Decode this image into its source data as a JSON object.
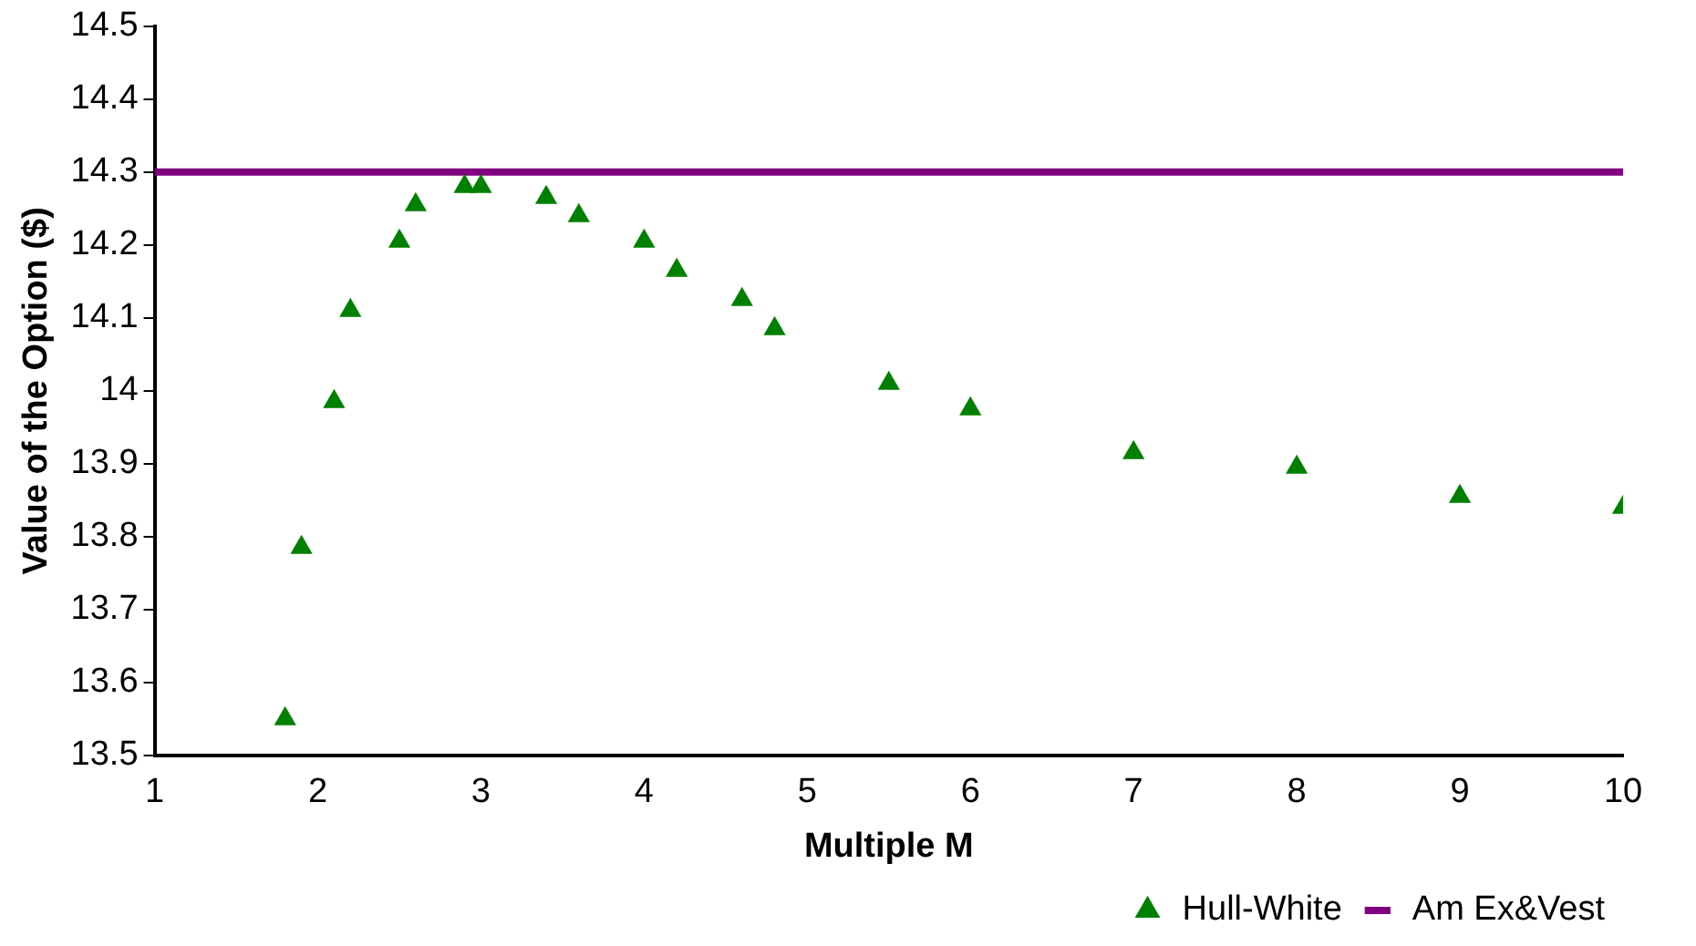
{
  "chart_data": {
    "type": "scatter",
    "xlabel": "Multiple M",
    "ylabel": "Value of the Option ($)",
    "xlim": [
      1,
      10
    ],
    "xticks": [
      1,
      2,
      3,
      4,
      5,
      6,
      7,
      8,
      9,
      10
    ],
    "ylim": [
      13.5,
      14.5
    ],
    "yticks": [
      13.5,
      13.6,
      13.7,
      13.8,
      13.9,
      14,
      14.1,
      14.2,
      14.3,
      14.4,
      14.5
    ],
    "grid": false,
    "legend": "bottom right",
    "marker": "triangle",
    "series": [
      {
        "name": "Hull-White",
        "color": "#008000",
        "x": [
          1.8,
          1.9,
          2.1,
          2.2,
          2.5,
          2.6,
          2.9,
          3.0,
          3.4,
          3.6,
          4.0,
          4.2,
          4.6,
          4.8,
          5.5,
          6,
          7,
          8,
          9,
          10
        ],
        "values": [
          13.55,
          13.785,
          13.985,
          14.11,
          14.205,
          14.255,
          14.28,
          14.28,
          14.265,
          14.24,
          14.205,
          14.165,
          14.125,
          14.085,
          14.01,
          13.975,
          13.915,
          13.895,
          13.855,
          13.84
        ]
      },
      {
        "name": "Am Ex&Vest",
        "type": "line",
        "color": "#800080",
        "marker": "none",
        "line_style": "solid",
        "x": [
          1,
          10
        ],
        "values": [
          14.3,
          14.3
        ]
      }
    ]
  }
}
